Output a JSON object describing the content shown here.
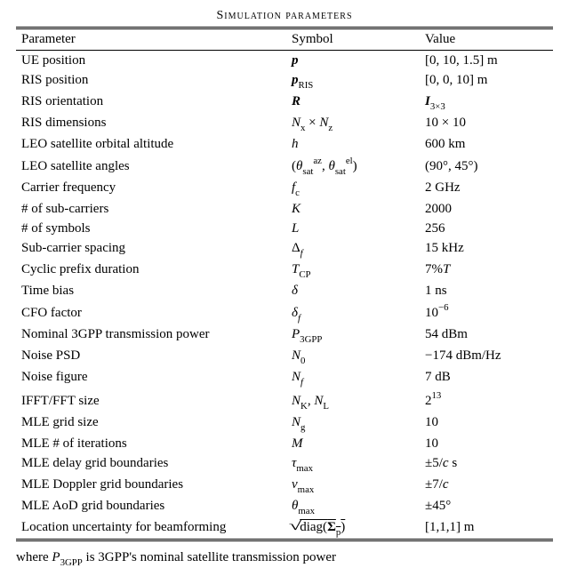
{
  "caption": "Simulation parameters",
  "headers": {
    "param": "Parameter",
    "symbol": "Symbol",
    "value": "Value"
  },
  "rows": [
    {
      "param": "UE position",
      "sym": "<span class='bital'>p</span>",
      "val": "[0, 10, 1.5] m"
    },
    {
      "param": "RIS position",
      "sym": "<span class='bital'>p</span><span class='sub'>RIS</span>",
      "val": "[0, 0, 10] m"
    },
    {
      "param": "RIS orientation",
      "sym": "<span class='bital'>R</span>",
      "val": "<span class='bital'>I</span><span class='sub'>3×3</span>"
    },
    {
      "param": "RIS dimensions",
      "sym": "<span class='ital'>N</span><span class='sub'>x</span> × <span class='ital'>N</span><span class='sub'>z</span>",
      "val": "10 × 10"
    },
    {
      "param": "LEO satellite orbital altitude",
      "sym": "<span class='ital'>h</span>",
      "val": "600 km"
    },
    {
      "param": "LEO satellite angles",
      "sym": "(<span class='ital'>θ</span><span class='sub'>sat</span><span class='sup'>az</span>, <span class='ital'>θ</span><span class='sub'>sat</span><span class='sup'>el</span>)",
      "val": "(90°, 45°)"
    },
    {
      "param": "Carrier frequency",
      "sym": "<span class='ital'>f</span><span class='sub'>c</span>",
      "val": "2 GHz"
    },
    {
      "param": "# of sub-carriers",
      "sym": "<span class='ital'>K</span>",
      "val": "2000"
    },
    {
      "param": "# of symbols",
      "sym": "<span class='ital'>L</span>",
      "val": "256"
    },
    {
      "param": "Sub-carrier spacing",
      "sym": "Δ<span class='sub'><span class='ital'>f</span></span>",
      "val": "15 kHz"
    },
    {
      "param": "Cyclic prefix duration",
      "sym": "<span class='ital'>T</span><span class='sub'>CP</span>",
      "val": "7%<span class='ital'>T</span>"
    },
    {
      "param": "Time bias",
      "sym": "<span class='ital'>δ</span>",
      "val": "1 ns"
    },
    {
      "param": "CFO factor",
      "sym": "<span class='ital'>δ</span><span class='sub'><span class='ital'>f</span></span>",
      "val": "10<span class='sup'>−6</span>"
    },
    {
      "param": "Nominal 3GPP transmission power",
      "sym": "<span class='ital'>P</span><span class='sub'>3GPP</span>",
      "val": "54 dBm"
    },
    {
      "param": "Noise PSD",
      "sym": "<span class='ital'>N</span><span class='sub'>0</span>",
      "val": "−174 dBm/Hz"
    },
    {
      "param": "Noise figure",
      "sym": "<span class='ital'>N</span><span class='sub'><span class='ital'>f</span></span>",
      "val": "7 dB"
    },
    {
      "param": "IFFT/FFT size",
      "sym": "<span class='ital'>N</span><span class='sub'>K</span>, <span class='ital'>N</span><span class='sub'>L</span>",
      "val": "2<span class='sup'>13</span>"
    },
    {
      "param": "MLE grid size",
      "sym": "<span class='ital'>N</span><span class='sub'>g</span>",
      "val": "10"
    },
    {
      "param": "MLE # of iterations",
      "sym": "<span class='ital'>M</span>",
      "val": "10"
    },
    {
      "param": "MLE delay grid boundaries",
      "sym": "<span class='ital'>τ</span><span class='sub'>max</span>",
      "val": "±5/<span class='ital'>c</span> s"
    },
    {
      "param": "MLE Doppler grid boundaries",
      "sym": "<span class='ital'>ν</span><span class='sub'>max</span>",
      "val": "±7/<span class='ital'>c</span>"
    },
    {
      "param": "MLE AoD grid boundaries",
      "sym": "<span class='ital'>θ</span><span class='sub'>max</span>",
      "val": "±45°"
    },
    {
      "param": "Location uncertainty for beamforming",
      "sym": "<span class='sq'>√</span><span class='ovl'>diag(<span class='bold'>Σ</span><span class='sub'>p</span>)</span>",
      "val": "[1,1,1] m"
    }
  ],
  "footer": "where  <span class='ital'>P</span><span class='sub'>3GPP</span>  is 3GPP's nominal satellite transmission power"
}
